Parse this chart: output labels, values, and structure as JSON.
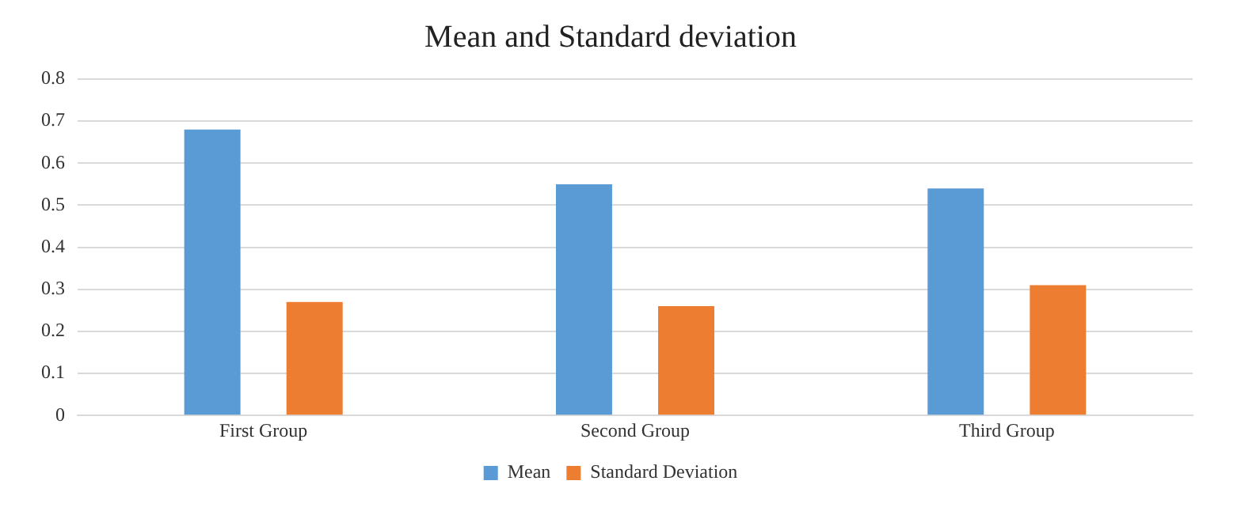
{
  "chart_data": {
    "type": "bar",
    "title": "Mean and Standard deviation",
    "categories": [
      "First Group",
      "Second Group",
      "Third Group"
    ],
    "series": [
      {
        "name": "Mean",
        "color": "#5b9bd5",
        "values": [
          0.68,
          0.55,
          0.54
        ]
      },
      {
        "name": "Standard Deviation",
        "color": "#ed7d31",
        "values": [
          0.27,
          0.26,
          0.31
        ]
      }
    ],
    "ylim": [
      0,
      0.8
    ],
    "yticks": [
      0,
      0.1,
      0.2,
      0.3,
      0.4,
      0.5,
      0.6,
      0.7,
      0.8
    ],
    "grid": "y",
    "legend": "bottom"
  }
}
